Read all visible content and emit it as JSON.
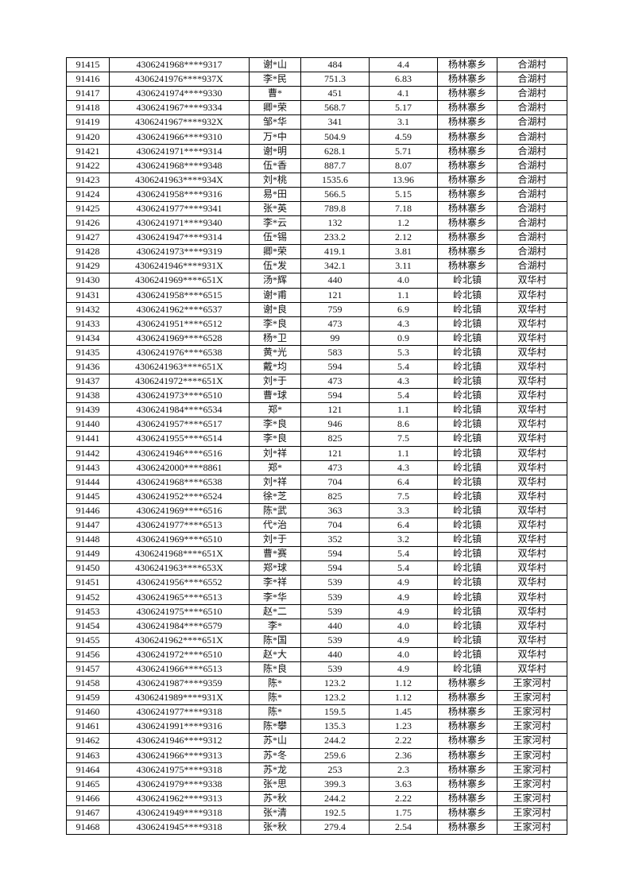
{
  "rows": [
    [
      "91415",
      "4306241968****9317",
      "谢*山",
      "484",
      "4.4",
      "杨林寨乡",
      "合湖村"
    ],
    [
      "91416",
      "4306241976****937X",
      "李*民",
      "751.3",
      "6.83",
      "杨林寨乡",
      "合湖村"
    ],
    [
      "91417",
      "4306241974****9330",
      "曹*",
      "451",
      "4.1",
      "杨林寨乡",
      "合湖村"
    ],
    [
      "91418",
      "4306241967****9334",
      "卿*荣",
      "568.7",
      "5.17",
      "杨林寨乡",
      "合湖村"
    ],
    [
      "91419",
      "4306241967****932X",
      "邹*华",
      "341",
      "3.1",
      "杨林寨乡",
      "合湖村"
    ],
    [
      "91420",
      "4306241966****9310",
      "万*中",
      "504.9",
      "4.59",
      "杨林寨乡",
      "合湖村"
    ],
    [
      "91421",
      "4306241971****9314",
      "谢*明",
      "628.1",
      "5.71",
      "杨林寨乡",
      "合湖村"
    ],
    [
      "91422",
      "4306241968****9348",
      "伍*香",
      "887.7",
      "8.07",
      "杨林寨乡",
      "合湖村"
    ],
    [
      "91423",
      "4306241963****934X",
      "刘*桃",
      "1535.6",
      "13.96",
      "杨林寨乡",
      "合湖村"
    ],
    [
      "91424",
      "4306241958****9316",
      "易*田",
      "566.5",
      "5.15",
      "杨林寨乡",
      "合湖村"
    ],
    [
      "91425",
      "4306241977****9341",
      "张*英",
      "789.8",
      "7.18",
      "杨林寨乡",
      "合湖村"
    ],
    [
      "91426",
      "4306241971****9340",
      "李*云",
      "132",
      "1.2",
      "杨林寨乡",
      "合湖村"
    ],
    [
      "91427",
      "4306241947****9314",
      "伍*锡",
      "233.2",
      "2.12",
      "杨林寨乡",
      "合湖村"
    ],
    [
      "91428",
      "4306241973****9319",
      "卿*荣",
      "419.1",
      "3.81",
      "杨林寨乡",
      "合湖村"
    ],
    [
      "91429",
      "4306241946****931X",
      "伍*发",
      "342.1",
      "3.11",
      "杨林寨乡",
      "合湖村"
    ],
    [
      "91430",
      "4306241969****651X",
      "汤*辉",
      "440",
      "4.0",
      "岭北镇",
      "双华村"
    ],
    [
      "91431",
      "4306241958****6515",
      "谢*甫",
      "121",
      "1.1",
      "岭北镇",
      "双华村"
    ],
    [
      "91432",
      "4306241962****6537",
      "谢*良",
      "759",
      "6.9",
      "岭北镇",
      "双华村"
    ],
    [
      "91433",
      "4306241951****6512",
      "李*良",
      "473",
      "4.3",
      "岭北镇",
      "双华村"
    ],
    [
      "91434",
      "4306241969****6528",
      "杨*卫",
      "99",
      "0.9",
      "岭北镇",
      "双华村"
    ],
    [
      "91435",
      "4306241976****6538",
      "黄*光",
      "583",
      "5.3",
      "岭北镇",
      "双华村"
    ],
    [
      "91436",
      "4306241963****651X",
      "戴*均",
      "594",
      "5.4",
      "岭北镇",
      "双华村"
    ],
    [
      "91437",
      "4306241972****651X",
      "刘*于",
      "473",
      "4.3",
      "岭北镇",
      "双华村"
    ],
    [
      "91438",
      "4306241973****6510",
      "曹*球",
      "594",
      "5.4",
      "岭北镇",
      "双华村"
    ],
    [
      "91439",
      "4306241984****6534",
      "郑*",
      "121",
      "1.1",
      "岭北镇",
      "双华村"
    ],
    [
      "91440",
      "4306241957****6517",
      "李*良",
      "946",
      "8.6",
      "岭北镇",
      "双华村"
    ],
    [
      "91441",
      "4306241955****6514",
      "李*良",
      "825",
      "7.5",
      "岭北镇",
      "双华村"
    ],
    [
      "91442",
      "4306241946****6516",
      "刘*祥",
      "121",
      "1.1",
      "岭北镇",
      "双华村"
    ],
    [
      "91443",
      "4306242000****8861",
      "郑*",
      "473",
      "4.3",
      "岭北镇",
      "双华村"
    ],
    [
      "91444",
      "4306241968****6538",
      "刘*祥",
      "704",
      "6.4",
      "岭北镇",
      "双华村"
    ],
    [
      "91445",
      "4306241952****6524",
      "徐*芝",
      "825",
      "7.5",
      "岭北镇",
      "双华村"
    ],
    [
      "91446",
      "4306241969****6516",
      "陈*武",
      "363",
      "3.3",
      "岭北镇",
      "双华村"
    ],
    [
      "91447",
      "4306241977****6513",
      "代*治",
      "704",
      "6.4",
      "岭北镇",
      "双华村"
    ],
    [
      "91448",
      "4306241969****6510",
      "刘*于",
      "352",
      "3.2",
      "岭北镇",
      "双华村"
    ],
    [
      "91449",
      "4306241968****651X",
      "曹*赛",
      "594",
      "5.4",
      "岭北镇",
      "双华村"
    ],
    [
      "91450",
      "4306241963****653X",
      "郑*球",
      "594",
      "5.4",
      "岭北镇",
      "双华村"
    ],
    [
      "91451",
      "4306241956****6552",
      "李*祥",
      "539",
      "4.9",
      "岭北镇",
      "双华村"
    ],
    [
      "91452",
      "4306241965****6513",
      "李*华",
      "539",
      "4.9",
      "岭北镇",
      "双华村"
    ],
    [
      "91453",
      "4306241975****6510",
      "赵*二",
      "539",
      "4.9",
      "岭北镇",
      "双华村"
    ],
    [
      "91454",
      "4306241984****6579",
      "李*",
      "440",
      "4.0",
      "岭北镇",
      "双华村"
    ],
    [
      "91455",
      "4306241962****651X",
      "陈*国",
      "539",
      "4.9",
      "岭北镇",
      "双华村"
    ],
    [
      "91456",
      "4306241972****6510",
      "赵*大",
      "440",
      "4.0",
      "岭北镇",
      "双华村"
    ],
    [
      "91457",
      "4306241966****6513",
      "陈*良",
      "539",
      "4.9",
      "岭北镇",
      "双华村"
    ],
    [
      "91458",
      "4306241987****9359",
      "陈*",
      "123.2",
      "1.12",
      "杨林寨乡",
      "王家河村"
    ],
    [
      "91459",
      "4306241989****931X",
      "陈*",
      "123.2",
      "1.12",
      "杨林寨乡",
      "王家河村"
    ],
    [
      "91460",
      "4306241977****9318",
      "陈*",
      "159.5",
      "1.45",
      "杨林寨乡",
      "王家河村"
    ],
    [
      "91461",
      "4306241991****9316",
      "陈*攀",
      "135.3",
      "1.23",
      "杨林寨乡",
      "王家河村"
    ],
    [
      "91462",
      "4306241946****9312",
      "苏*山",
      "244.2",
      "2.22",
      "杨林寨乡",
      "王家河村"
    ],
    [
      "91463",
      "4306241966****9313",
      "苏*冬",
      "259.6",
      "2.36",
      "杨林寨乡",
      "王家河村"
    ],
    [
      "91464",
      "4306241975****9318",
      "苏*龙",
      "253",
      "2.3",
      "杨林寨乡",
      "王家河村"
    ],
    [
      "91465",
      "4306241979****9338",
      "张*思",
      "399.3",
      "3.63",
      "杨林寨乡",
      "王家河村"
    ],
    [
      "91466",
      "4306241962****9313",
      "苏*秋",
      "244.2",
      "2.22",
      "杨林寨乡",
      "王家河村"
    ],
    [
      "91467",
      "4306241949****9318",
      "张*清",
      "192.5",
      "1.75",
      "杨林寨乡",
      "王家河村"
    ],
    [
      "91468",
      "4306241945****9318",
      "张*秋",
      "279.4",
      "2.54",
      "杨林寨乡",
      "王家河村"
    ]
  ]
}
